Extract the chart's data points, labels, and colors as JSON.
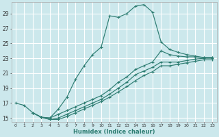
{
  "xlabel": "Humidex (Indice chaleur)",
  "background_color": "#cce8ec",
  "grid_color": "#ffffff",
  "line_color": "#2e7d72",
  "xlim": [
    -0.5,
    23.5
  ],
  "ylim": [
    14.5,
    30.5
  ],
  "yticks": [
    15,
    17,
    19,
    21,
    23,
    25,
    27,
    29
  ],
  "xticks": [
    0,
    1,
    2,
    3,
    4,
    5,
    6,
    7,
    8,
    9,
    10,
    11,
    12,
    13,
    14,
    15,
    16,
    17,
    18,
    19,
    20,
    21,
    22,
    23
  ],
  "curve1_x": [
    0,
    1,
    2,
    3,
    4,
    5,
    6,
    7,
    8,
    9,
    10,
    11,
    12,
    13,
    14,
    15,
    16,
    17,
    18,
    19,
    20,
    21,
    22,
    23
  ],
  "curve1_y": [
    17.0,
    16.7,
    15.7,
    15.1,
    15.0,
    16.2,
    17.8,
    20.2,
    22.0,
    23.5,
    24.5,
    28.7,
    28.5,
    29.0,
    30.0,
    30.2,
    29.2,
    25.2,
    24.2,
    23.8,
    23.5,
    23.3,
    23.1,
    23.1
  ],
  "curve2_x": [
    2,
    3,
    4,
    5,
    6,
    7,
    8,
    9,
    10,
    11,
    12,
    13,
    14,
    15,
    16,
    17,
    18,
    19,
    20,
    21,
    22,
    23
  ],
  "curve2_y": [
    15.7,
    15.1,
    15.0,
    15.5,
    16.0,
    16.5,
    17.0,
    17.5,
    18.0,
    18.8,
    19.8,
    20.5,
    21.5,
    22.0,
    22.5,
    24.0,
    23.5,
    23.3,
    23.2,
    23.2,
    23.1,
    23.1
  ],
  "curve3_x": [
    2,
    3,
    4,
    5,
    6,
    7,
    8,
    9,
    10,
    11,
    12,
    13,
    14,
    15,
    16,
    17,
    18,
    19,
    20,
    21,
    22,
    23
  ],
  "curve3_y": [
    15.7,
    15.1,
    14.8,
    15.0,
    15.5,
    16.0,
    16.5,
    17.0,
    17.5,
    18.2,
    19.0,
    19.8,
    20.8,
    21.3,
    21.8,
    22.5,
    22.5,
    22.5,
    22.7,
    22.9,
    23.0,
    23.0
  ],
  "curve4_x": [
    2,
    3,
    4,
    5,
    6,
    7,
    8,
    9,
    10,
    11,
    12,
    13,
    14,
    15,
    16,
    17,
    18,
    19,
    20,
    21,
    22,
    23
  ],
  "curve4_y": [
    15.7,
    15.1,
    14.8,
    14.8,
    15.2,
    15.7,
    16.2,
    16.7,
    17.2,
    17.8,
    18.5,
    19.2,
    20.0,
    20.7,
    21.2,
    22.0,
    22.0,
    22.2,
    22.4,
    22.6,
    22.8,
    22.8
  ]
}
